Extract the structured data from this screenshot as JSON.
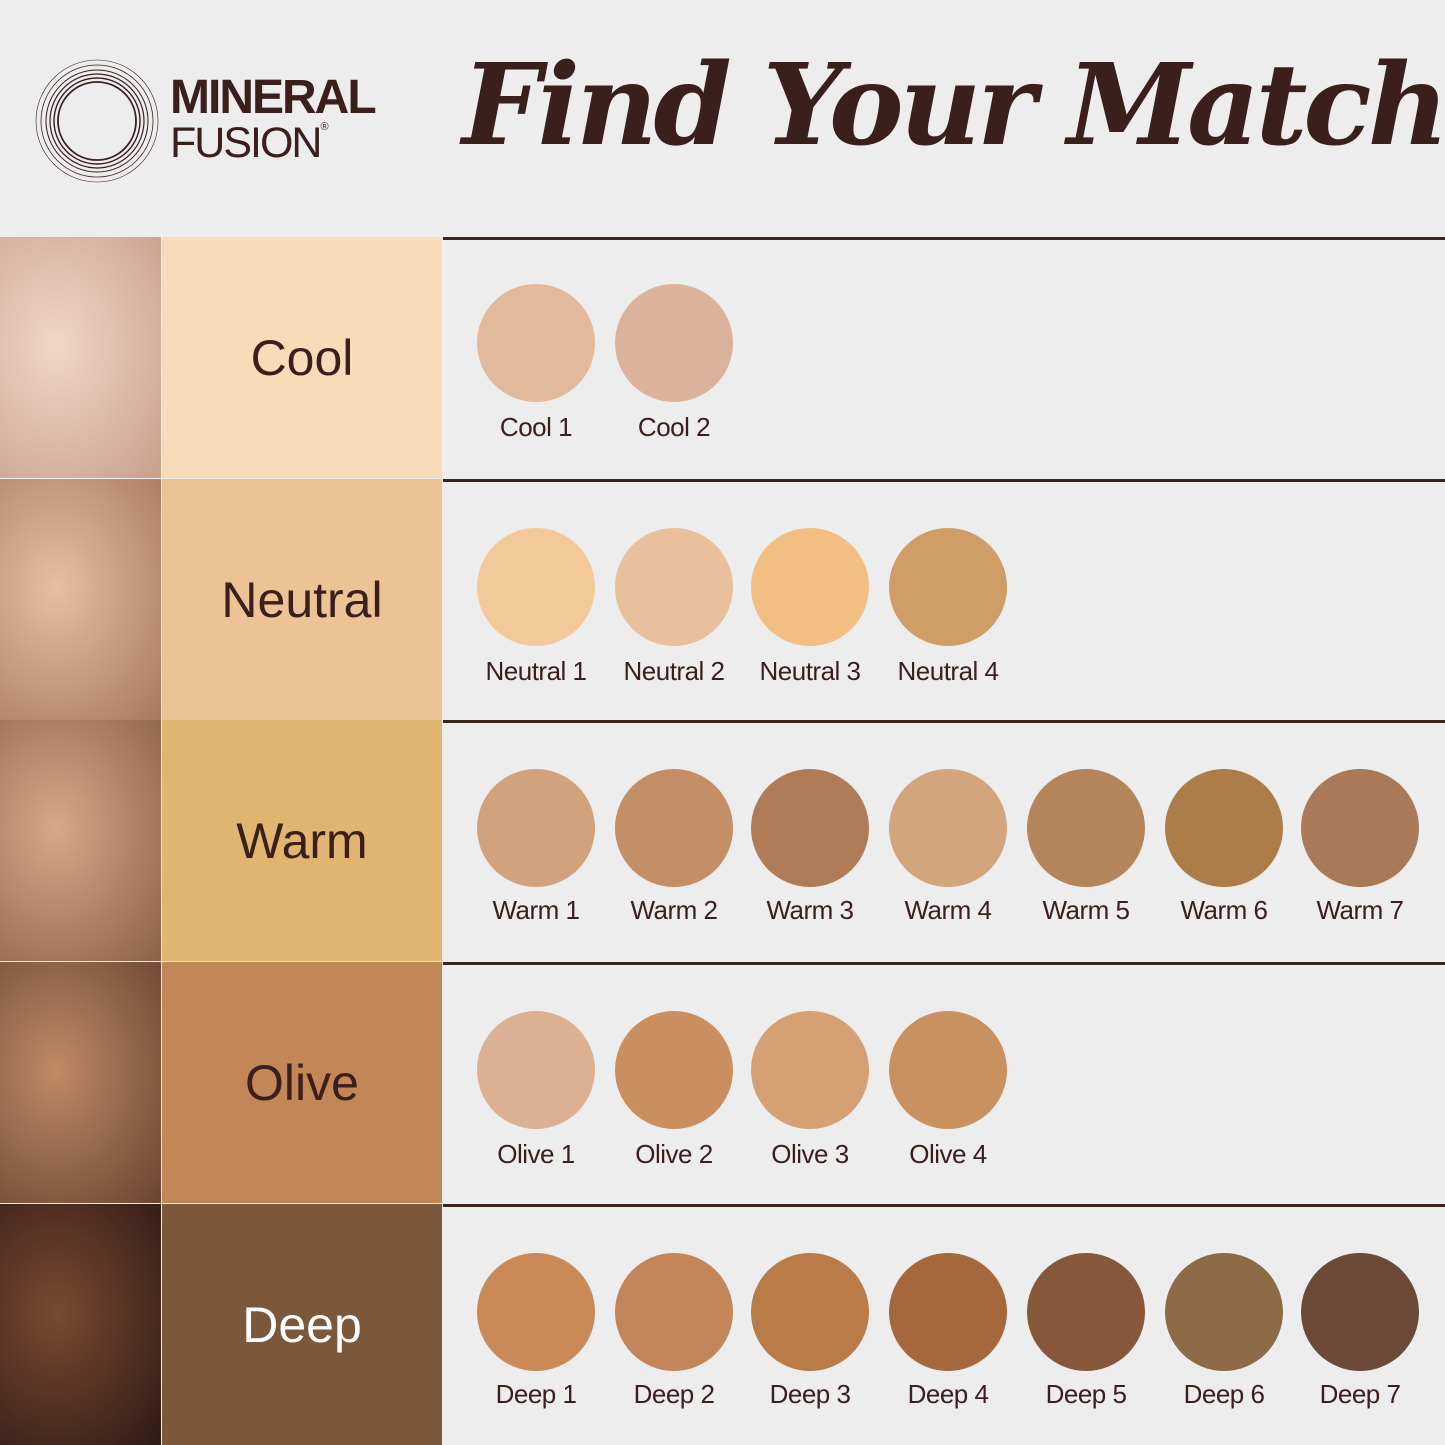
{
  "brand": {
    "line1": "MINERAL",
    "line2": "FUSION",
    "reg": "®"
  },
  "title": "Find Your Match",
  "rows": [
    {
      "name": "Cool",
      "panel_color": "#f8dcb9",
      "text_color": "#3a1f1c",
      "face": [
        "#f1d6c6",
        "#c8a08c"
      ],
      "shades": [
        {
          "label": "Cool 1",
          "color": "#e2b99a"
        },
        {
          "label": "Cool 2",
          "color": "#dbb39c"
        }
      ]
    },
    {
      "name": "Neutral",
      "panel_color": "#ebc394",
      "text_color": "#3a1f1c",
      "face": [
        "#e9bea0",
        "#a87860"
      ],
      "shades": [
        {
          "label": "Neutral 1",
          "color": "#f3c99a"
        },
        {
          "label": "Neutral 2",
          "color": "#e8c19c"
        },
        {
          "label": "Neutral 3",
          "color": "#f2be82"
        },
        {
          "label": "Neutral 4",
          "color": "#cf9d66"
        }
      ]
    },
    {
      "name": "Warm",
      "panel_color": "#e0b56f",
      "text_color": "#3a1f1c",
      "face": [
        "#d8a886",
        "#8e6048"
      ],
      "shades": [
        {
          "label": "Warm 1",
          "color": "#d1a37c"
        },
        {
          "label": "Warm 2",
          "color": "#c48e66"
        },
        {
          "label": "Warm 3",
          "color": "#b07c58"
        },
        {
          "label": "Warm 4",
          "color": "#d3a57c"
        },
        {
          "label": "Warm 5",
          "color": "#b4845b"
        },
        {
          "label": "Warm 6",
          "color": "#ad7d49"
        },
        {
          "label": "Warm 7",
          "color": "#a87a57"
        }
      ]
    },
    {
      "name": "Olive",
      "panel_color": "#c38657",
      "text_color": "#3a1f1c",
      "face": [
        "#c08a64",
        "#6a4432"
      ],
      "shades": [
        {
          "label": "Olive 1",
          "color": "#dbb093"
        },
        {
          "label": "Olive 2",
          "color": "#c98f5f"
        },
        {
          "label": "Olive 3",
          "color": "#d5a074"
        },
        {
          "label": "Olive 4",
          "color": "#c8915f"
        }
      ]
    },
    {
      "name": "Deep",
      "panel_color": "#7b583c",
      "text_color": "#ffffff",
      "face": [
        "#7a4a32",
        "#2e1a14"
      ],
      "shades": [
        {
          "label": "Deep 1",
          "color": "#c98a57"
        },
        {
          "label": "Deep 2",
          "color": "#c3865a"
        },
        {
          "label": "Deep 3",
          "color": "#b97b47"
        },
        {
          "label": "Deep 4",
          "color": "#a5683c"
        },
        {
          "label": "Deep 5",
          "color": "#865739"
        },
        {
          "label": "Deep 6",
          "color": "#8d6b47"
        },
        {
          "label": "Deep 7",
          "color": "#6d4937"
        }
      ]
    }
  ]
}
